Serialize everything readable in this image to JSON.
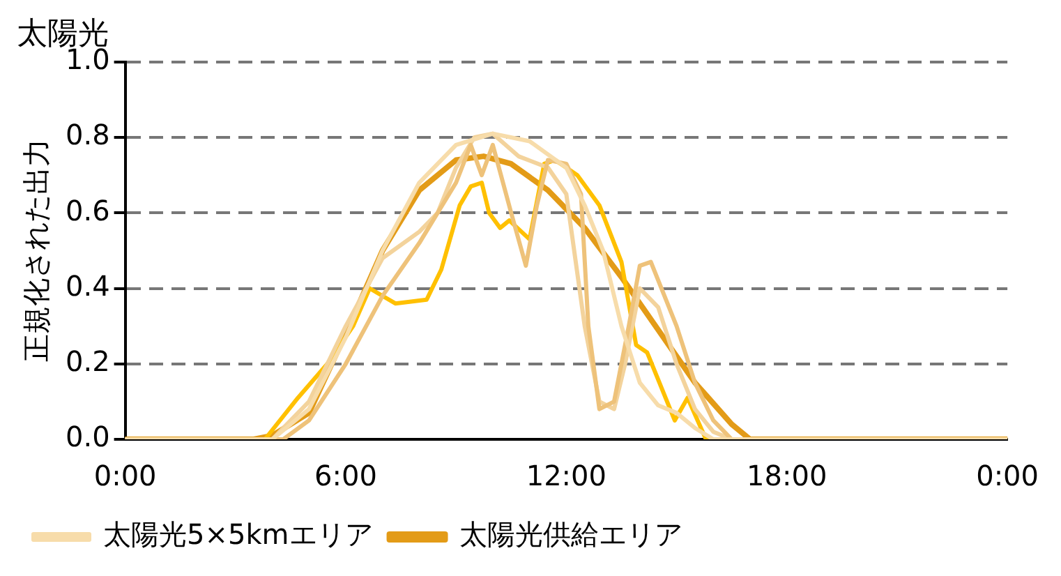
{
  "chart_data": {
    "type": "line",
    "title": "太陽光",
    "ylabel": "正規化された出力",
    "xlim": [
      0,
      24
    ],
    "xticks": [
      {
        "value": 0,
        "label": "0:00"
      },
      {
        "value": 6,
        "label": "6:00"
      },
      {
        "value": 12,
        "label": "12:00"
      },
      {
        "value": 18,
        "label": "18:00"
      },
      {
        "value": 24,
        "label": "0:00"
      }
    ],
    "ylim": [
      0,
      1
    ],
    "yticks": [
      {
        "value": 0,
        "label": "0.0"
      },
      {
        "value": 0.2,
        "label": "0.2"
      },
      {
        "value": 0.4,
        "label": "0.4"
      },
      {
        "value": 0.6,
        "label": "0.6"
      },
      {
        "value": 0.8,
        "label": "0.8"
      },
      {
        "value": 1,
        "label": "1.0"
      }
    ],
    "grid": "y",
    "legend": "bottom",
    "marker": "none",
    "line_style": "solid",
    "series": [
      {
        "name": "太陽光5×5kmエリア",
        "color": "#f7dcaa",
        "x": [
          0,
          4,
          5,
          6,
          7,
          8,
          9,
          10,
          11,
          12,
          12.5,
          13,
          13.5,
          14,
          14.5,
          15,
          15.5,
          16,
          24
        ],
        "values": [
          0,
          0,
          0.08,
          0.27,
          0.5,
          0.68,
          0.78,
          0.81,
          0.79,
          0.72,
          0.62,
          0.5,
          0.3,
          0.15,
          0.09,
          0.07,
          0.03,
          0,
          0
        ]
      },
      {
        "color": "#eec27a",
        "x": [
          0,
          4.3,
          5,
          6,
          7,
          8,
          8.5,
          9,
          9.4,
          9.7,
          10,
          10.5,
          10.9,
          11.2,
          11.5,
          12,
          12.4,
          12.6,
          12.9,
          13.3,
          13.7,
          14,
          14.3,
          15,
          15.5,
          16,
          16.5,
          24
        ],
        "values": [
          0,
          0,
          0.05,
          0.2,
          0.38,
          0.52,
          0.6,
          0.68,
          0.78,
          0.7,
          0.78,
          0.6,
          0.46,
          0.62,
          0.74,
          0.73,
          0.65,
          0.3,
          0.08,
          0.1,
          0.3,
          0.46,
          0.47,
          0.3,
          0.15,
          0.05,
          0,
          0
        ]
      },
      {
        "color": "#f3d39c",
        "x": [
          0,
          4,
          5,
          6,
          7,
          8,
          8.5,
          9,
          9.5,
          10,
          10.7,
          11.5,
          12,
          12.5,
          12.9,
          13.3,
          13.6,
          14,
          14.5,
          15,
          15.5,
          16,
          16.5,
          24
        ],
        "values": [
          0,
          0,
          0.1,
          0.3,
          0.48,
          0.55,
          0.6,
          0.72,
          0.8,
          0.81,
          0.75,
          0.72,
          0.65,
          0.3,
          0.1,
          0.08,
          0.2,
          0.4,
          0.35,
          0.2,
          0.08,
          0.02,
          0,
          0
        ]
      },
      {
        "color": "#ffc000",
        "x": [
          0,
          3.8,
          4.7,
          5.5,
          6.2,
          6.65,
          7.35,
          8.2,
          8.6,
          9.1,
          9.4,
          9.7,
          9.9,
          10.2,
          10.45,
          11,
          11.4,
          11.7,
          12.3,
          12.9,
          13.5,
          13.9,
          14.2,
          14.7,
          14.95,
          15.3,
          15.8,
          24
        ],
        "values": [
          0,
          0,
          0.11,
          0.2,
          0.3,
          0.4,
          0.36,
          0.37,
          0.45,
          0.62,
          0.67,
          0.68,
          0.6,
          0.56,
          0.58,
          0.53,
          0.73,
          0.74,
          0.7,
          0.62,
          0.47,
          0.25,
          0.23,
          0.11,
          0.05,
          0.11,
          0,
          0
        ]
      },
      {
        "name": "太陽光供給エリア",
        "color": "#e39b17",
        "x": [
          0,
          3.5,
          4,
          5,
          6,
          7,
          8,
          9,
          9.75,
          10.5,
          11.5,
          12.5,
          13.5,
          14.5,
          15.5,
          16.5,
          17,
          24
        ],
        "values": [
          0,
          0,
          0.01,
          0.07,
          0.28,
          0.5,
          0.66,
          0.74,
          0.75,
          0.73,
          0.66,
          0.56,
          0.43,
          0.29,
          0.15,
          0.04,
          0,
          0
        ]
      }
    ]
  }
}
